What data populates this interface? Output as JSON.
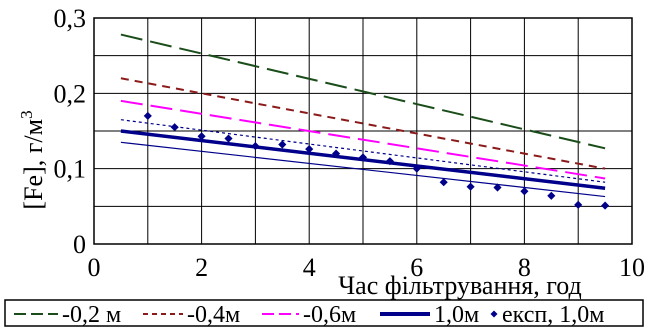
{
  "chart_data": {
    "type": "line",
    "xlabel": "Час фільтрування, год",
    "ylabel_main": "[Fe], г/м",
    "ylabel_sup": "3",
    "xlim": [
      0,
      10
    ],
    "ylim": [
      0,
      0.3
    ],
    "xticks": [
      0,
      2,
      4,
      6,
      8,
      10
    ],
    "xtick_labels": [
      "0",
      "2",
      "4",
      "6",
      "8",
      "10"
    ],
    "yticks": [
      0,
      0.1,
      0.2,
      0.3
    ],
    "ytick_labels": [
      "0",
      "0,1",
      "0,2",
      "0,3"
    ],
    "grid": true,
    "legend_position": "bottom",
    "series": [
      {
        "name": "-0,2 м",
        "kind": "line",
        "style": "long-dash",
        "color": "#1a4d1a",
        "x": [
          0.5,
          9.5
        ],
        "y": [
          0.278,
          0.127
        ]
      },
      {
        "name": "-0,4м",
        "kind": "line",
        "style": "short-dash",
        "color": "#8b1a1a",
        "x": [
          0.5,
          9.5
        ],
        "y": [
          0.22,
          0.1
        ]
      },
      {
        "name": "-0,6м",
        "kind": "line",
        "style": "long-dash",
        "color": "#ff00ff",
        "x": [
          0.5,
          9.5
        ],
        "y": [
          0.19,
          0.087
        ]
      },
      {
        "name": "1,0м",
        "kind": "line",
        "style": "solid",
        "color": "#00008b",
        "x": [
          0.5,
          9.5
        ],
        "y": [
          0.15,
          0.074
        ]
      },
      {
        "name": "",
        "kind": "band-upper",
        "style": "dotted",
        "color": "#00008b",
        "x": [
          0.5,
          9.5
        ],
        "y": [
          0.165,
          0.082
        ]
      },
      {
        "name": "",
        "kind": "band-lower",
        "style": "thin",
        "color": "#00008b",
        "x": [
          0.5,
          9.5
        ],
        "y": [
          0.135,
          0.063
        ]
      },
      {
        "name": "експ, 1,0м",
        "kind": "scatter",
        "color": "#00008b",
        "x": [
          1,
          1.5,
          2,
          2.5,
          3,
          3.5,
          4,
          4.5,
          5,
          5.5,
          6,
          6.5,
          7,
          7.5,
          8,
          8.5,
          9,
          9.5
        ],
        "y": [
          0.17,
          0.155,
          0.143,
          0.14,
          0.13,
          0.132,
          0.126,
          0.12,
          0.115,
          0.11,
          0.1,
          0.082,
          0.076,
          0.075,
          0.07,
          0.064,
          0.052,
          0.051
        ]
      }
    ]
  }
}
